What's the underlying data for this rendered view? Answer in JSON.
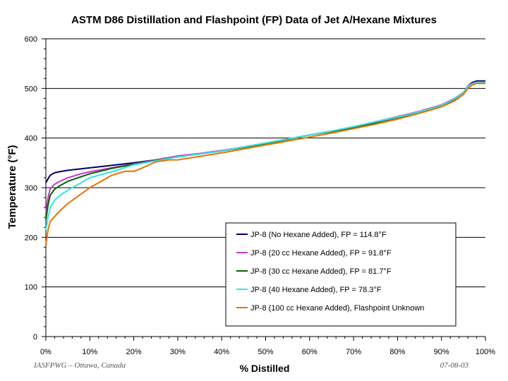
{
  "chart_data": {
    "type": "line",
    "title": "ASTM D86 Distillation and Flashpoint (FP) Data of Jet A/Hexane Mixtures",
    "xlabel": "% Distilled",
    "ylabel": "Temperature (°F)",
    "xlim": [
      0,
      100
    ],
    "ylim": [
      0,
      600
    ],
    "x_ticks": [
      0,
      10,
      20,
      30,
      40,
      50,
      60,
      70,
      80,
      90,
      100
    ],
    "x_tick_labels": [
      "0%",
      "10%",
      "20%",
      "30%",
      "40%",
      "50%",
      "60%",
      "70%",
      "80%",
      "90%",
      "100%"
    ],
    "y_ticks": [
      0,
      100,
      200,
      300,
      400,
      500,
      600
    ],
    "y_tick_labels": [
      "0",
      "100",
      "200",
      "300",
      "400",
      "500",
      "600"
    ],
    "grid": "horizontal",
    "legend_position": "bottom-right",
    "series": [
      {
        "name": "JP-8 (No Hexane Added), FP = 114.8°F",
        "color": "#000066",
        "x": [
          0,
          0.5,
          1,
          2,
          3,
          5,
          8,
          10,
          15,
          20,
          25,
          30,
          35,
          40,
          45,
          50,
          55,
          60,
          65,
          70,
          75,
          80,
          85,
          90,
          93,
          95,
          96,
          97,
          98,
          100
        ],
        "y": [
          310,
          318,
          325,
          330,
          332,
          335,
          338,
          340,
          345,
          350,
          356,
          363,
          368,
          374,
          382,
          390,
          398,
          406,
          414,
          422,
          432,
          442,
          452,
          465,
          478,
          490,
          505,
          512,
          515,
          515
        ]
      },
      {
        "name": "JP-8 (20 cc Hexane Added), FP = 91.8°F",
        "color": "#cc33cc",
        "x": [
          0,
          0.5,
          1,
          2,
          3,
          5,
          8,
          10,
          15,
          20,
          25,
          30,
          35,
          40,
          45,
          50,
          55,
          60,
          65,
          70,
          75,
          80,
          85,
          90,
          93,
          95,
          96,
          97,
          98,
          100
        ],
        "y": [
          248,
          280,
          298,
          307,
          312,
          320,
          328,
          332,
          340,
          348,
          356,
          364,
          369,
          375,
          382,
          390,
          398,
          406,
          414,
          423,
          433,
          443,
          454,
          467,
          480,
          492,
          505,
          510,
          513,
          513
        ]
      },
      {
        "name": "JP-8 (30 cc Hexane Added), FP = 81.7°F",
        "color": "#006600",
        "x": [
          0,
          0.5,
          1,
          2,
          3,
          5,
          8,
          10,
          15,
          20,
          25,
          30,
          35,
          40,
          45,
          50,
          55,
          60,
          65,
          70,
          75,
          80,
          85,
          90,
          93,
          95,
          96,
          97,
          98,
          100
        ],
        "y": [
          235,
          265,
          285,
          297,
          303,
          313,
          322,
          328,
          339,
          347,
          355,
          362,
          368,
          374,
          381,
          389,
          397,
          406,
          413,
          421,
          431,
          441,
          452,
          465,
          478,
          490,
          503,
          508,
          511,
          511
        ]
      },
      {
        "name": "JP-8 (40 Hexane Added), FP = 78.3°F",
        "color": "#33e6e6",
        "x": [
          0,
          0.5,
          1,
          2,
          3,
          5,
          8,
          10,
          15,
          20,
          25,
          30,
          35,
          40,
          45,
          50,
          55,
          60,
          65,
          70,
          75,
          80,
          85,
          90,
          93,
          95,
          96,
          97,
          98,
          100
        ],
        "y": [
          215,
          240,
          260,
          275,
          283,
          295,
          310,
          320,
          332,
          346,
          354,
          362,
          368,
          374,
          382,
          390,
          398,
          406,
          414,
          423,
          433,
          442,
          453,
          466,
          479,
          491,
          504,
          509,
          512,
          512
        ]
      },
      {
        "name": "JP-8 (100 cc Hexane Added), Flashpoint Unknown",
        "color": "#e67300",
        "x": [
          0,
          0.5,
          1,
          2,
          3,
          5,
          8,
          10,
          12,
          15,
          18,
          20,
          22,
          25,
          28,
          30,
          35,
          40,
          45,
          50,
          55,
          60,
          65,
          70,
          75,
          80,
          85,
          90,
          93,
          95,
          96,
          97,
          98,
          100
        ],
        "y": [
          185,
          215,
          232,
          242,
          252,
          268,
          287,
          300,
          310,
          325,
          333,
          333,
          340,
          352,
          356,
          356,
          363,
          370,
          378,
          386,
          394,
          402,
          410,
          419,
          428,
          438,
          450,
          463,
          475,
          488,
          500,
          507,
          510,
          510
        ]
      }
    ]
  },
  "footer": {
    "left": "IASFPWG – Ottawa, Canada",
    "right": "07-08-03"
  }
}
